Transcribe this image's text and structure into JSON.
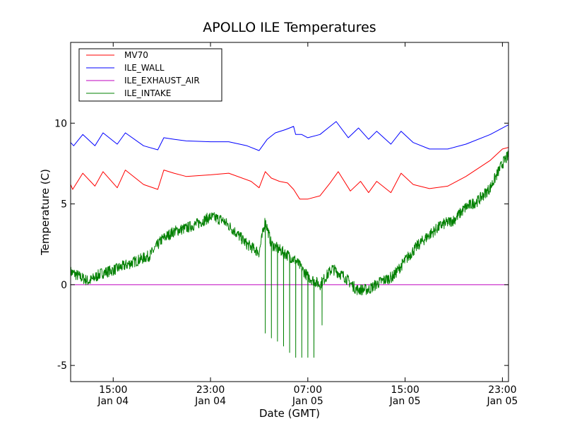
{
  "chart_data": {
    "type": "line",
    "title": "APOLLO ILE Temperatures",
    "xlabel": "Date (GMT)",
    "ylabel": "Temperature (C)",
    "xlim": [
      "2015-01-04 11:30",
      "2015-01-05 23:30"
    ],
    "ylim": [
      -6,
      15
    ],
    "x_ticks": [
      {
        "time": "2015-01-04 15:00",
        "label1": "15:00",
        "label2": "Jan 04"
      },
      {
        "time": "2015-01-04 23:00",
        "label1": "23:00",
        "label2": "Jan 04"
      },
      {
        "time": "2015-01-05 07:00",
        "label1": "07:00",
        "label2": "Jan 05"
      },
      {
        "time": "2015-01-05 15:00",
        "label1": "15:00",
        "label2": "Jan 05"
      },
      {
        "time": "2015-01-05 23:00",
        "label1": "23:00",
        "label2": "Jan 05"
      }
    ],
    "y_ticks": [
      {
        "value": 10,
        "label": "10"
      },
      {
        "value": 5,
        "label": "5"
      },
      {
        "value": 0,
        "label": "0"
      },
      {
        "value": -5,
        "label": "-5"
      }
    ],
    "grid": false,
    "legend_position": "top-left",
    "series": [
      {
        "name": "MV70",
        "color": "#ff0000",
        "points": [
          [
            "2015-01-04 11:30",
            6.2
          ],
          [
            "2015-01-04 11:40",
            5.9
          ],
          [
            "2015-01-04 12:30",
            6.9
          ],
          [
            "2015-01-04 13:30",
            6.1
          ],
          [
            "2015-01-04 14:10",
            7.0
          ],
          [
            "2015-01-04 15:20",
            6.0
          ],
          [
            "2015-01-04 16:00",
            7.1
          ],
          [
            "2015-01-04 17:30",
            6.2
          ],
          [
            "2015-01-04 18:40",
            5.9
          ],
          [
            "2015-01-04 19:10",
            7.1
          ],
          [
            "2015-01-04 20:00",
            6.9
          ],
          [
            "2015-01-04 21:00",
            6.7
          ],
          [
            "2015-01-04 23:00",
            6.8
          ],
          [
            "2015-01-05 00:30",
            6.9
          ],
          [
            "2015-01-05 02:20",
            6.4
          ],
          [
            "2015-01-05 03:00",
            6.0
          ],
          [
            "2015-01-05 03:30",
            7.0
          ],
          [
            "2015-01-05 04:00",
            6.6
          ],
          [
            "2015-01-05 04:40",
            6.4
          ],
          [
            "2015-01-05 05:20",
            6.3
          ],
          [
            "2015-01-05 05:50",
            5.9
          ],
          [
            "2015-01-05 06:20",
            5.3
          ],
          [
            "2015-01-05 07:00",
            5.3
          ],
          [
            "2015-01-05 08:00",
            5.5
          ],
          [
            "2015-01-05 08:50",
            6.3
          ],
          [
            "2015-01-05 09:30",
            7.0
          ],
          [
            "2015-01-05 10:30",
            5.8
          ],
          [
            "2015-01-05 11:20",
            6.4
          ],
          [
            "2015-01-05 12:00",
            5.7
          ],
          [
            "2015-01-05 12:40",
            6.4
          ],
          [
            "2015-01-05 13:50",
            5.7
          ],
          [
            "2015-01-05 14:40",
            6.9
          ],
          [
            "2015-01-05 15:40",
            6.2
          ],
          [
            "2015-01-05 17:00",
            5.95
          ],
          [
            "2015-01-05 18:30",
            6.1
          ],
          [
            "2015-01-05 20:00",
            6.7
          ],
          [
            "2015-01-05 22:00",
            7.7
          ],
          [
            "2015-01-05 23:00",
            8.4
          ],
          [
            "2015-01-05 23:30",
            8.5
          ]
        ]
      },
      {
        "name": "ILE_WALL",
        "color": "#0000ff",
        "points": [
          [
            "2015-01-04 11:30",
            8.8
          ],
          [
            "2015-01-04 11:45",
            8.6
          ],
          [
            "2015-01-04 12:30",
            9.3
          ],
          [
            "2015-01-04 13:30",
            8.6
          ],
          [
            "2015-01-04 14:10",
            9.4
          ],
          [
            "2015-01-04 15:20",
            8.7
          ],
          [
            "2015-01-04 16:00",
            9.4
          ],
          [
            "2015-01-04 17:30",
            8.6
          ],
          [
            "2015-01-04 18:40",
            8.35
          ],
          [
            "2015-01-04 19:10",
            9.1
          ],
          [
            "2015-01-04 20:00",
            9.0
          ],
          [
            "2015-01-04 21:00",
            8.9
          ],
          [
            "2015-01-04 23:00",
            8.85
          ],
          [
            "2015-01-05 00:30",
            8.85
          ],
          [
            "2015-01-05 02:00",
            8.6
          ],
          [
            "2015-01-05 03:00",
            8.3
          ],
          [
            "2015-01-05 03:40",
            9.0
          ],
          [
            "2015-01-05 04:20",
            9.4
          ],
          [
            "2015-01-05 05:10",
            9.6
          ],
          [
            "2015-01-05 05:50",
            9.8
          ],
          [
            "2015-01-05 06:00",
            9.3
          ],
          [
            "2015-01-05 06:30",
            9.3
          ],
          [
            "2015-01-05 07:00",
            9.1
          ],
          [
            "2015-01-05 08:00",
            9.3
          ],
          [
            "2015-01-05 08:40",
            9.7
          ],
          [
            "2015-01-05 09:20",
            10.1
          ],
          [
            "2015-01-05 10:20",
            9.1
          ],
          [
            "2015-01-05 11:10",
            9.7
          ],
          [
            "2015-01-05 12:00",
            9.0
          ],
          [
            "2015-01-05 12:40",
            9.5
          ],
          [
            "2015-01-05 13:50",
            8.7
          ],
          [
            "2015-01-05 14:40",
            9.5
          ],
          [
            "2015-01-05 15:40",
            8.8
          ],
          [
            "2015-01-05 17:00",
            8.4
          ],
          [
            "2015-01-05 18:30",
            8.4
          ],
          [
            "2015-01-05 20:00",
            8.7
          ],
          [
            "2015-01-05 22:00",
            9.3
          ],
          [
            "2015-01-05 23:30",
            9.9
          ]
        ]
      },
      {
        "name": "ILE_EXHAUST_AIR",
        "color": "#bf00bf",
        "points": [
          [
            "2015-01-04 11:30",
            0.0
          ],
          [
            "2015-01-05 23:30",
            0.0
          ]
        ]
      },
      {
        "name": "ILE_INTAKE",
        "color": "#008000",
        "points": [
          [
            "2015-01-04 11:30",
            0.8
          ],
          [
            "2015-01-04 12:00",
            0.6
          ],
          [
            "2015-01-04 13:00",
            0.2
          ],
          [
            "2015-01-04 14:00",
            0.7
          ],
          [
            "2015-01-04 15:00",
            0.9
          ],
          [
            "2015-01-04 16:00",
            1.2
          ],
          [
            "2015-01-04 17:00",
            1.5
          ],
          [
            "2015-01-04 18:00",
            1.8
          ],
          [
            "2015-01-04 19:00",
            2.8
          ],
          [
            "2015-01-04 20:00",
            3.3
          ],
          [
            "2015-01-04 21:00",
            3.5
          ],
          [
            "2015-01-04 22:00",
            3.8
          ],
          [
            "2015-01-04 23:00",
            4.2
          ],
          [
            "2015-01-05 00:00",
            4.0
          ],
          [
            "2015-01-05 01:00",
            3.3
          ],
          [
            "2015-01-05 02:00",
            2.5
          ],
          [
            "2015-01-05 03:00",
            2.0
          ],
          [
            "2015-01-05 03:30",
            4.0
          ],
          [
            "2015-01-05 04:00",
            2.5
          ],
          [
            "2015-01-05 05:00",
            2.0
          ],
          [
            "2015-01-05 06:00",
            1.5
          ],
          [
            "2015-01-05 07:00",
            0.5
          ],
          [
            "2015-01-05 08:00",
            0.0
          ],
          [
            "2015-01-05 09:00",
            1.0
          ],
          [
            "2015-01-05 10:00",
            0.5
          ],
          [
            "2015-01-05 11:00",
            -0.3
          ],
          [
            "2015-01-05 12:00",
            -0.3
          ],
          [
            "2015-01-05 13:00",
            0.2
          ],
          [
            "2015-01-05 14:00",
            0.5
          ],
          [
            "2015-01-05 15:00",
            1.5
          ],
          [
            "2015-01-05 16:00",
            2.4
          ],
          [
            "2015-01-05 17:00",
            3.1
          ],
          [
            "2015-01-05 18:00",
            3.7
          ],
          [
            "2015-01-05 19:00",
            4.0
          ],
          [
            "2015-01-05 20:00",
            4.8
          ],
          [
            "2015-01-05 21:00",
            5.2
          ],
          [
            "2015-01-05 22:00",
            6.0
          ],
          [
            "2015-01-05 23:00",
            7.5
          ],
          [
            "2015-01-05 23:30",
            8.0
          ]
        ],
        "noise_amplitude": 0.35,
        "dips": [
          [
            "2015-01-05 03:30",
            -3.0
          ],
          [
            "2015-01-05 04:00",
            -3.3
          ],
          [
            "2015-01-05 04:30",
            -3.5
          ],
          [
            "2015-01-05 05:00",
            -3.8
          ],
          [
            "2015-01-05 05:30",
            -4.2
          ],
          [
            "2015-01-05 06:00",
            -4.5
          ],
          [
            "2015-01-05 06:30",
            -4.5
          ],
          [
            "2015-01-05 07:00",
            -4.5
          ],
          [
            "2015-01-05 07:30",
            -4.5
          ],
          [
            "2015-01-05 08:10",
            -2.5
          ]
        ]
      }
    ]
  }
}
